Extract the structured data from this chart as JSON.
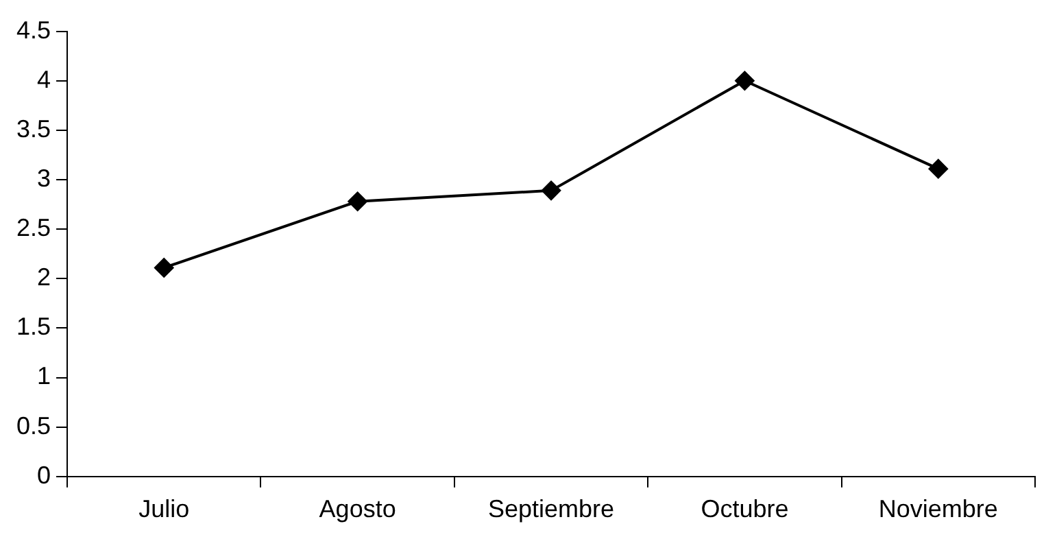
{
  "chart_data": {
    "type": "line",
    "categories": [
      "Julio",
      "Agosto",
      "Septiembre",
      "Octubre",
      "Noviembre"
    ],
    "series": [
      {
        "color": "#000000",
        "values": [
          2.11,
          2.78,
          2.89,
          4.0,
          3.11
        ]
      }
    ],
    "ylim": [
      0,
      4.5
    ],
    "yticks": [
      0,
      0.5,
      1,
      1.5,
      2,
      2.5,
      3,
      3.5,
      4,
      4.5
    ],
    "grid": false,
    "legend": false,
    "marker": "diamond",
    "line_style": "solid"
  }
}
